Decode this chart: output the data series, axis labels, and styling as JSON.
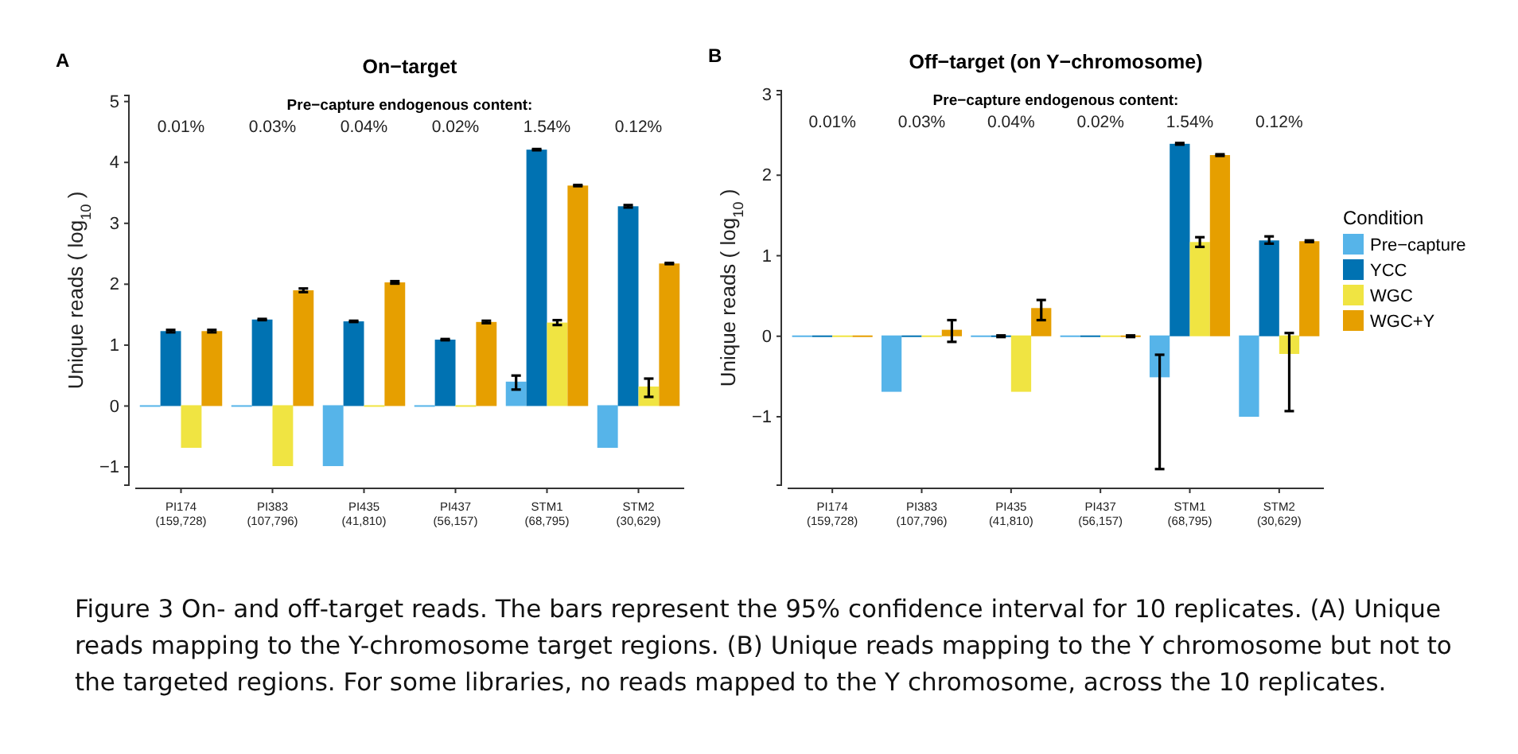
{
  "chart_data": [
    {
      "type": "bar",
      "title": "On−target",
      "ylabel": "Unique reads ( log$_{10}$ )",
      "categories": [
        "PI174\n(159,728)",
        "PI383\n(107,796)",
        "PI435\n(41,810)",
        "PI437\n(56,157)",
        "STM1\n(68,795)",
        "STM2\n(30,629)"
      ],
      "ylim": [
        -1.3,
        5.1
      ],
      "yticks": [
        -1,
        0,
        1,
        2,
        3,
        4,
        5
      ],
      "legend": false,
      "annotations": [
        "A",
        "Pre−capture endogenous content:",
        "0.01%",
        "0.03%",
        "0.04%",
        "0.02%",
        "1.54%",
        "0.12%",
        "Figure 3 On- and off-target reads. The bars represent the 95% confidence interval for 10 replicates. (A) Unique reads mapping to the Y-chromosome target regions. (B) Unique reads mapping to the Y chromosome but not to the targeted regions. For some libraries, no reads mapped to the Y chromosome, across the 10 replicates."
      ],
      "series": [
        {
          "color": "#56b4e9",
          "values": [
            0,
            0,
            -1.0,
            0,
            0.4,
            -0.7
          ],
          "errors": [
            null,
            null,
            null,
            null,
            [
              0.27,
              0.5
            ],
            null
          ]
        },
        {
          "color": "#0072b2",
          "values": [
            1.23,
            1.42,
            1.39,
            1.09,
            4.21,
            3.28
          ],
          "errors": [
            [
              1.21,
              1.25
            ],
            [
              1.41,
              1.43
            ],
            [
              1.38,
              1.4
            ],
            [
              1.08,
              1.1
            ],
            [
              4.2,
              4.22
            ],
            [
              3.26,
              3.3
            ]
          ]
        },
        {
          "color": "#f0e442",
          "values": [
            -0.7,
            -1.0,
            0,
            0,
            1.37,
            0.32
          ],
          "errors": [
            null,
            null,
            null,
            null,
            [
              1.33,
              1.41
            ],
            [
              0.15,
              0.45
            ]
          ]
        },
        {
          "color": "#e69f00",
          "values": [
            1.23,
            1.9,
            2.03,
            1.38,
            3.62,
            2.34
          ],
          "errors": [
            [
              1.21,
              1.25
            ],
            [
              1.87,
              1.93
            ],
            [
              2.01,
              2.05
            ],
            [
              1.36,
              1.4
            ],
            [
              3.61,
              3.63
            ],
            [
              2.33,
              2.35
            ]
          ]
        }
      ]
    },
    {
      "type": "bar",
      "title": "Off−target (on Y−chromosome)",
      "ylabel": "Unique reads ( log$_{10}$ )",
      "categories": [
        "PI174\n(159,728)",
        "PI383\n(107,796)",
        "PI435\n(41,810)",
        "PI437\n(56,157)",
        "STM1\n(68,795)",
        "STM2\n(30,629)"
      ],
      "ylim": [
        -1.85,
        3.05
      ],
      "yticks": [
        -1,
        0,
        1,
        2,
        3
      ],
      "legend": "right",
      "legend_title": "Condition",
      "annotations": [
        "B",
        "Pre−capture endogenous content:",
        "0.01%",
        "0.03%",
        "0.04%",
        "0.02%",
        "1.54%",
        "0.12%"
      ],
      "series": [
        {
          "name": "Pre−capture",
          "color": "#56b4e9",
          "values": [
            0,
            -0.7,
            0,
            0,
            -0.52,
            -1.01
          ],
          "errors": [
            null,
            null,
            null,
            null,
            [
              -1.65,
              -0.23
            ],
            null
          ]
        },
        {
          "name": "YCC",
          "color": "#0072b2",
          "values": [
            0,
            0,
            0,
            0,
            2.39,
            1.19
          ],
          "errors": [
            null,
            null,
            [
              -0.01,
              0.01
            ],
            null,
            [
              2.38,
              2.4
            ],
            [
              1.15,
              1.24
            ]
          ]
        },
        {
          "name": "WGC",
          "color": "#f0e442",
          "values": [
            0,
            0,
            -0.7,
            0,
            1.17,
            -0.23
          ],
          "errors": [
            null,
            null,
            null,
            null,
            [
              1.11,
              1.23
            ],
            [
              -0.93,
              0.04
            ]
          ]
        },
        {
          "name": "WGC+Y",
          "color": "#e69f00",
          "values": [
            0,
            0.08,
            0.35,
            0,
            2.25,
            1.18
          ],
          "errors": [
            null,
            [
              -0.07,
              0.2
            ],
            [
              0.2,
              0.45
            ],
            [
              -0.01,
              0.01
            ],
            [
              2.24,
              2.26
            ],
            [
              1.17,
              1.19
            ]
          ]
        }
      ]
    }
  ]
}
